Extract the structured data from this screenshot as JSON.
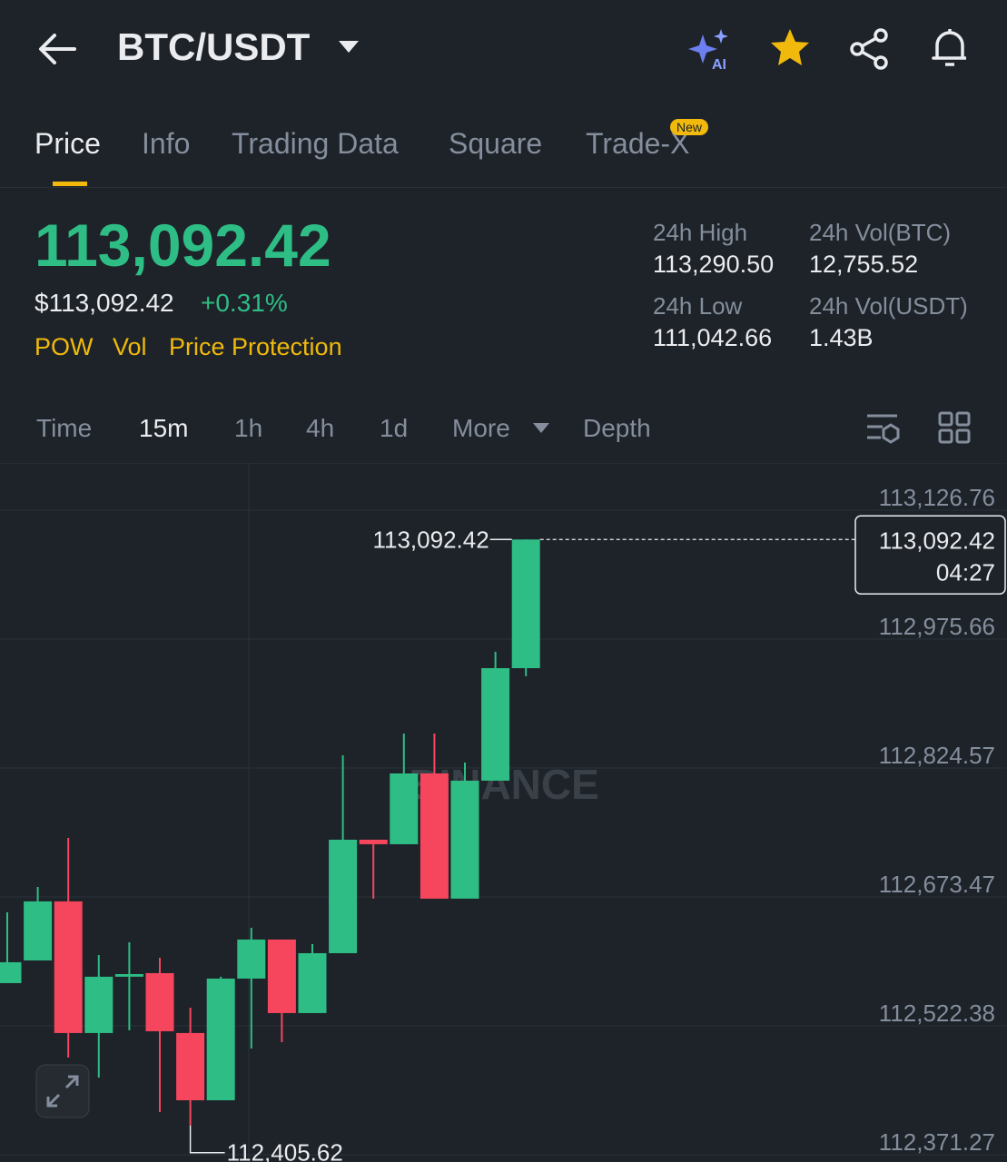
{
  "header": {
    "pair": "BTC/USDT"
  },
  "tabs": [
    {
      "label": "Price"
    },
    {
      "label": "Info"
    },
    {
      "label": "Trading Data"
    },
    {
      "label": "Square"
    },
    {
      "label": "Trade-X",
      "badge": "New"
    }
  ],
  "price": {
    "last": "113,092.42",
    "usd": "$113,092.42",
    "change": "+0.31%",
    "tags": [
      "POW",
      "Vol",
      "Price Protection"
    ]
  },
  "stats": [
    {
      "label": "24h High",
      "value": "113,290.50"
    },
    {
      "label": "24h Vol(BTC)",
      "value": "12,755.52"
    },
    {
      "label": "24h Low",
      "value": "111,042.66"
    },
    {
      "label": "24h Vol(USDT)",
      "value": "1.43B"
    }
  ],
  "intervals": [
    "Time",
    "15m",
    "1h",
    "4h",
    "1d",
    "More",
    "Depth"
  ],
  "chart": {
    "type": "candlestick",
    "watermark": "BINANCE",
    "up_color": "#2ebd85",
    "down_color": "#f6465d",
    "ylim": [
      112362.74,
      113182.09
    ],
    "yticks": [
      {
        "value": 112371.27,
        "label": "112,371.27"
      },
      {
        "value": 112522.38,
        "label": "112,522.38"
      },
      {
        "value": 112673.47,
        "label": "112,673.47"
      },
      {
        "value": 112824.57,
        "label": "112,824.57"
      },
      {
        "value": 112975.66,
        "label": "112,975.66"
      },
      {
        "value": 113126.76,
        "label": "113,126.76"
      }
    ],
    "candles": [
      {
        "open": 112572.4,
        "high": 112655.4,
        "low": 112572.4,
        "close": 112596.9
      },
      {
        "open": 112599.0,
        "high": 112685.2,
        "low": 112599.0,
        "close": 112668.2
      },
      {
        "open": 112668.2,
        "high": 112742.6,
        "low": 112485.1,
        "close": 112513.9
      },
      {
        "open": 112513.9,
        "high": 112605.4,
        "low": 112461.7,
        "close": 112579.9
      },
      {
        "open": 112579.9,
        "high": 112620.3,
        "low": 112517.1,
        "close": 112583.0
      },
      {
        "open": 112584.1,
        "high": 112602.2,
        "low": 112421.3,
        "close": 112516.0
      },
      {
        "open": 112513.9,
        "high": 112543.7,
        "low": 112405.62,
        "close": 112435.1
      },
      {
        "open": 112435.1,
        "high": 112579.9,
        "low": 112435.1,
        "close": 112577.7
      },
      {
        "open": 112577.7,
        "high": 112637.3,
        "low": 112495.8,
        "close": 112623.5
      },
      {
        "open": 112623.5,
        "high": 112623.5,
        "low": 112503.2,
        "close": 112537.3
      },
      {
        "open": 112537.3,
        "high": 112618.2,
        "low": 112537.3,
        "close": 112607.5
      },
      {
        "open": 112607.5,
        "high": 112839.5,
        "low": 112607.5,
        "close": 112740.5
      },
      {
        "open": 112740.5,
        "high": 112740.5,
        "low": 112671.4,
        "close": 112735.2
      },
      {
        "open": 112735.2,
        "high": 112865.0,
        "low": 112735.2,
        "close": 112818.2
      },
      {
        "open": 112818.2,
        "high": 112865.0,
        "low": 112671.4,
        "close": 112671.4
      },
      {
        "open": 112671.4,
        "high": 112831.0,
        "low": 112671.4,
        "close": 112809.7
      },
      {
        "open": 112809.7,
        "high": 112960.8,
        "low": 112809.7,
        "close": 112941.6
      },
      {
        "open": 112941.6,
        "high": 113092.42,
        "low": 112932.1,
        "close": 113092.42
      }
    ],
    "high_marker": {
      "value": 113092.42,
      "label": "113,092.42"
    },
    "low_marker": {
      "value": 112405.62,
      "label": "112,405.62"
    },
    "current_price": {
      "value": 113092.42,
      "label": "113,092.42"
    },
    "countdown": "04:27"
  }
}
